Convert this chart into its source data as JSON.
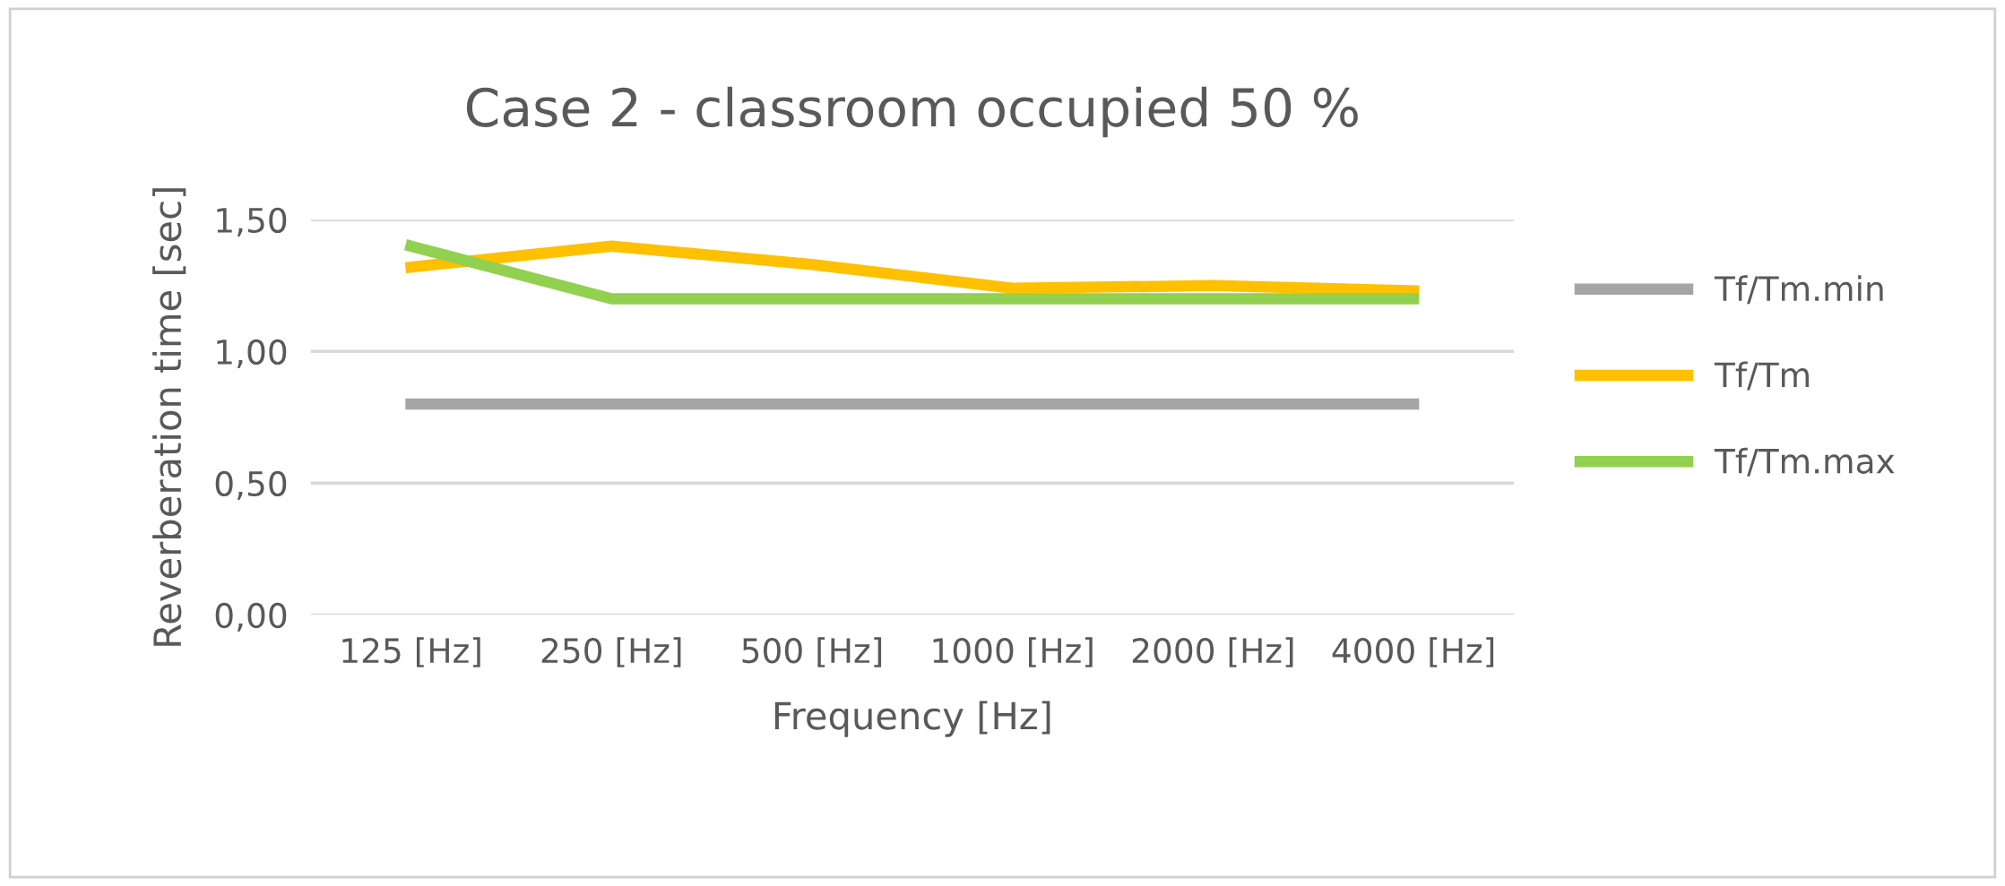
{
  "chart_data": {
    "type": "line",
    "title": "Case 2 - classroom occupied 50 %",
    "xlabel": "Frequency [Hz]",
    "ylabel": "Reverberation time [sec]",
    "categories": [
      "125 [Hz]",
      "250 [Hz]",
      "500 [Hz]",
      "1000 [Hz]",
      "2000 [Hz]",
      "4000 [Hz]"
    ],
    "series": [
      {
        "name": "Tf/Tm.min",
        "color": "#a5a5a5",
        "values": [
          0.8,
          0.8,
          0.8,
          0.8,
          0.8,
          0.8
        ]
      },
      {
        "name": "Tf/Tm",
        "color": "#ffc000",
        "values": [
          1.32,
          1.4,
          1.33,
          1.24,
          1.25,
          1.23
        ]
      },
      {
        "name": "Tf/Tm.max",
        "color": "#92d050",
        "values": [
          1.4,
          1.2,
          1.2,
          1.2,
          1.2,
          1.2
        ]
      }
    ],
    "ylim": [
      0,
      1.5
    ],
    "yticks": [
      {
        "value": 0,
        "label": "0,00"
      },
      {
        "value": 0.5,
        "label": "0,50"
      },
      {
        "value": 1,
        "label": "1,00"
      },
      {
        "value": 1.5,
        "label": "1,50"
      }
    ],
    "grid": "y",
    "legend": "right",
    "line_style": "solid"
  }
}
